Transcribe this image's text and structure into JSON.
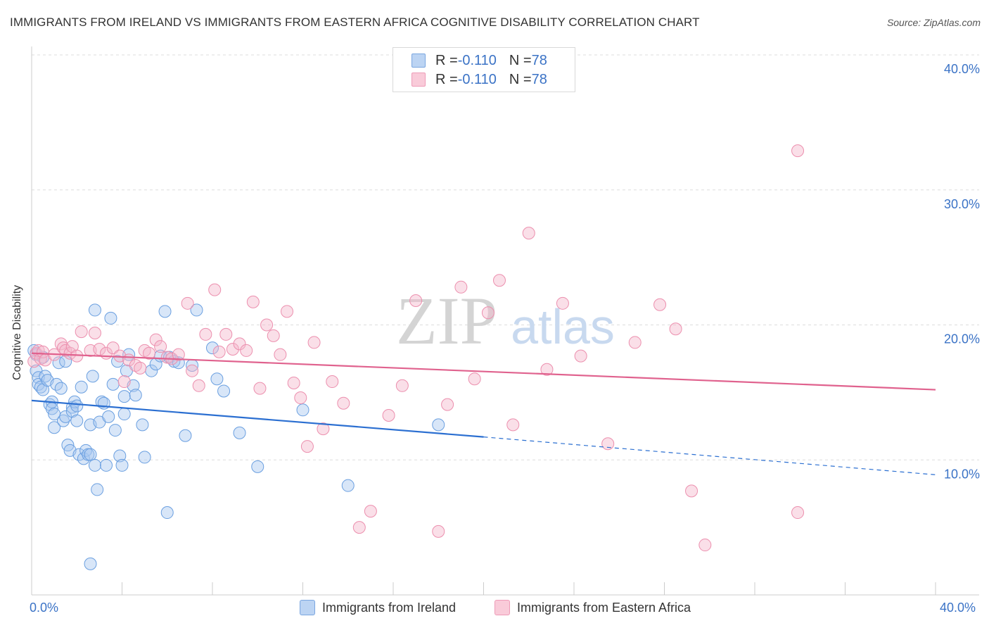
{
  "title": "IMMIGRANTS FROM IRELAND VS IMMIGRANTS FROM EASTERN AFRICA COGNITIVE DISABILITY CORRELATION CHART",
  "source": "Source: ZipAtlas.com",
  "watermark": {
    "zip": "ZIP",
    "atlas": "atlas"
  },
  "legend": {
    "rows": [
      {
        "r_label": "R = ",
        "r_value": "-0.110",
        "n_label": "N = ",
        "n_value": "78",
        "color": "#a9c8f0"
      },
      {
        "r_label": "R = ",
        "r_value": "-0.110",
        "n_label": "N = ",
        "n_value": "78",
        "color": "#f5b8cb"
      }
    ]
  },
  "x_labels": {
    "left": "0.0%",
    "right": "40.0%"
  },
  "chart_data": {
    "type": "scatter",
    "xlabel": "",
    "ylabel": "Cognitive Disability",
    "xlim": [
      0,
      40
    ],
    "ylim": [
      0,
      40
    ],
    "y_ticks": [
      {
        "value": 10,
        "label": "10.0%"
      },
      {
        "value": 20,
        "label": "20.0%"
      },
      {
        "value": 30,
        "label": "30.0%"
      },
      {
        "value": 40,
        "label": "40.0%"
      }
    ],
    "x_tick_values": [
      0,
      4,
      8,
      12,
      16,
      20,
      24,
      28,
      32,
      36,
      40
    ],
    "grid": "horizontal dashed",
    "series": [
      {
        "name": "Immigrants from Ireland",
        "color": "#6a9fe0",
        "fill": "#a9c8f0",
        "line_color": "#2b6fd1",
        "trend": {
          "x0": 0,
          "y0": 14.4,
          "x1": 20,
          "y1": 11.7,
          "dash_to_x": 40,
          "dash_to_y": 8.9
        },
        "points": [
          [
            0.1,
            18.1
          ],
          [
            0.2,
            17.8
          ],
          [
            0.2,
            16.6
          ],
          [
            0.3,
            16.1
          ],
          [
            0.3,
            15.6
          ],
          [
            0.4,
            15.4
          ],
          [
            0.5,
            17.6
          ],
          [
            0.5,
            15.2
          ],
          [
            0.6,
            16.2
          ],
          [
            0.7,
            15.9
          ],
          [
            0.8,
            14.1
          ],
          [
            0.9,
            14.3
          ],
          [
            0.9,
            13.8
          ],
          [
            1.0,
            13.4
          ],
          [
            1.0,
            12.4
          ],
          [
            1.1,
            15.6
          ],
          [
            1.2,
            17.2
          ],
          [
            1.3,
            15.3
          ],
          [
            1.4,
            12.9
          ],
          [
            1.5,
            17.3
          ],
          [
            1.5,
            13.2
          ],
          [
            1.6,
            11.1
          ],
          [
            1.7,
            10.7
          ],
          [
            1.8,
            13.9
          ],
          [
            1.8,
            13.6
          ],
          [
            1.9,
            14.3
          ],
          [
            2.0,
            14.0
          ],
          [
            2.0,
            12.9
          ],
          [
            2.1,
            10.4
          ],
          [
            2.2,
            15.4
          ],
          [
            2.3,
            10.1
          ],
          [
            2.4,
            10.7
          ],
          [
            2.5,
            10.4
          ],
          [
            2.6,
            12.6
          ],
          [
            2.6,
            10.4
          ],
          [
            2.6,
            2.3
          ],
          [
            2.7,
            16.2
          ],
          [
            2.8,
            21.1
          ],
          [
            2.8,
            9.6
          ],
          [
            2.9,
            7.8
          ],
          [
            3.0,
            12.8
          ],
          [
            3.1,
            14.3
          ],
          [
            3.2,
            14.2
          ],
          [
            3.3,
            9.6
          ],
          [
            3.4,
            13.2
          ],
          [
            3.5,
            20.5
          ],
          [
            3.6,
            15.6
          ],
          [
            3.7,
            12.2
          ],
          [
            3.8,
            17.3
          ],
          [
            3.9,
            10.3
          ],
          [
            4.0,
            9.6
          ],
          [
            4.1,
            14.7
          ],
          [
            4.1,
            13.4
          ],
          [
            4.2,
            16.6
          ],
          [
            4.3,
            17.8
          ],
          [
            4.5,
            15.5
          ],
          [
            4.6,
            14.8
          ],
          [
            4.9,
            12.6
          ],
          [
            5.0,
            10.2
          ],
          [
            5.3,
            16.6
          ],
          [
            5.5,
            17.1
          ],
          [
            5.7,
            17.7
          ],
          [
            5.9,
            21.0
          ],
          [
            6.0,
            6.1
          ],
          [
            6.1,
            17.6
          ],
          [
            6.3,
            17.3
          ],
          [
            6.5,
            17.2
          ],
          [
            6.8,
            11.8
          ],
          [
            7.1,
            17.0
          ],
          [
            7.3,
            21.1
          ],
          [
            8.0,
            18.3
          ],
          [
            8.2,
            16.0
          ],
          [
            8.5,
            15.1
          ],
          [
            9.2,
            12.0
          ],
          [
            10.0,
            9.5
          ],
          [
            12.0,
            13.7
          ],
          [
            14.0,
            8.1
          ],
          [
            18.0,
            12.6
          ]
        ]
      },
      {
        "name": "Immigrants from Eastern Africa",
        "color": "#ec8fae",
        "fill": "#f5b8cb",
        "line_color": "#e0628e",
        "trend": {
          "x0": 0,
          "y0": 17.9,
          "x1": 40,
          "y1": 15.2
        },
        "points": [
          [
            0.1,
            17.3
          ],
          [
            0.2,
            17.9
          ],
          [
            0.3,
            18.1
          ],
          [
            0.4,
            17.5
          ],
          [
            0.5,
            18.0
          ],
          [
            0.6,
            17.4
          ],
          [
            1.0,
            17.8
          ],
          [
            1.3,
            18.6
          ],
          [
            1.4,
            18.3
          ],
          [
            1.5,
            18.1
          ],
          [
            1.7,
            17.9
          ],
          [
            1.8,
            18.4
          ],
          [
            2.0,
            17.7
          ],
          [
            2.2,
            19.5
          ],
          [
            2.6,
            18.1
          ],
          [
            2.8,
            19.4
          ],
          [
            3.0,
            18.2
          ],
          [
            3.3,
            17.9
          ],
          [
            3.6,
            18.3
          ],
          [
            3.9,
            17.7
          ],
          [
            4.1,
            15.8
          ],
          [
            4.3,
            17.4
          ],
          [
            4.6,
            17.0
          ],
          [
            4.8,
            16.8
          ],
          [
            5.0,
            18.1
          ],
          [
            5.2,
            17.9
          ],
          [
            5.5,
            18.9
          ],
          [
            5.7,
            18.4
          ],
          [
            6.0,
            17.6
          ],
          [
            6.2,
            17.5
          ],
          [
            6.5,
            17.8
          ],
          [
            6.9,
            21.6
          ],
          [
            7.1,
            16.6
          ],
          [
            7.4,
            15.5
          ],
          [
            7.7,
            19.3
          ],
          [
            8.1,
            22.6
          ],
          [
            8.3,
            18.0
          ],
          [
            8.6,
            19.3
          ],
          [
            8.9,
            18.2
          ],
          [
            9.2,
            18.6
          ],
          [
            9.5,
            18.1
          ],
          [
            9.8,
            21.7
          ],
          [
            10.1,
            15.3
          ],
          [
            10.4,
            20.0
          ],
          [
            10.7,
            19.2
          ],
          [
            11.0,
            17.8
          ],
          [
            11.3,
            21.0
          ],
          [
            11.6,
            15.7
          ],
          [
            11.9,
            14.6
          ],
          [
            12.2,
            11.0
          ],
          [
            12.5,
            18.7
          ],
          [
            12.9,
            12.3
          ],
          [
            13.3,
            15.8
          ],
          [
            13.8,
            14.2
          ],
          [
            14.5,
            5.0
          ],
          [
            15.0,
            6.2
          ],
          [
            15.8,
            13.3
          ],
          [
            16.4,
            15.5
          ],
          [
            17.0,
            21.8
          ],
          [
            18.0,
            4.7
          ],
          [
            18.4,
            14.1
          ],
          [
            19.0,
            22.8
          ],
          [
            19.6,
            16.0
          ],
          [
            20.2,
            20.9
          ],
          [
            20.7,
            23.3
          ],
          [
            21.3,
            12.6
          ],
          [
            22.0,
            26.8
          ],
          [
            22.8,
            16.7
          ],
          [
            23.5,
            21.6
          ],
          [
            24.3,
            17.7
          ],
          [
            25.5,
            11.2
          ],
          [
            26.7,
            18.7
          ],
          [
            27.8,
            21.5
          ],
          [
            28.5,
            19.7
          ],
          [
            29.2,
            7.7
          ],
          [
            29.8,
            3.7
          ],
          [
            33.9,
            32.9
          ],
          [
            33.9,
            6.1
          ]
        ]
      }
    ]
  }
}
